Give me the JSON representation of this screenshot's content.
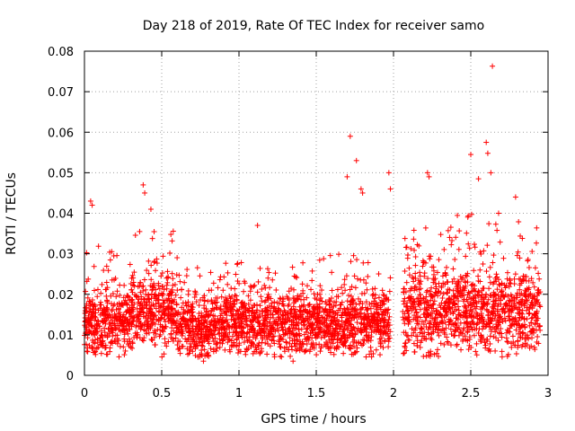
{
  "chart_data": {
    "type": "scatter",
    "title": "Day 218 of 2019, Rate Of TEC Index for receiver samo",
    "xlabel": "GPS time / hours",
    "ylabel": "ROTI / TECUs",
    "xlim": [
      0,
      3
    ],
    "ylim": [
      0,
      0.08
    ],
    "grid": true,
    "marker": "plus",
    "marker_color": "#ff0000",
    "x_ticks": [
      {
        "value": 0,
        "label": "0"
      },
      {
        "value": 0.5,
        "label": "0.5"
      },
      {
        "value": 1,
        "label": "1"
      },
      {
        "value": 1.5,
        "label": "1.5"
      },
      {
        "value": 2,
        "label": "2"
      },
      {
        "value": 2.5,
        "label": "2.5"
      },
      {
        "value": 3,
        "label": "3"
      }
    ],
    "y_ticks": [
      {
        "value": 0,
        "label": "0"
      },
      {
        "value": 0.01,
        "label": "0.01"
      },
      {
        "value": 0.02,
        "label": "0.02"
      },
      {
        "value": 0.03,
        "label": "0.03"
      },
      {
        "value": 0.04,
        "label": "0.04"
      },
      {
        "value": 0.05,
        "label": "0.05"
      },
      {
        "value": 0.06,
        "label": "0.06"
      },
      {
        "value": 0.07,
        "label": "0.07"
      },
      {
        "value": 0.08,
        "label": "0.08"
      }
    ],
    "gaps": [
      [
        1.98,
        2.06
      ]
    ],
    "notable_points": [
      {
        "x": 0.04,
        "y": 0.043
      },
      {
        "x": 0.05,
        "y": 0.042
      },
      {
        "x": 0.38,
        "y": 0.047
      },
      {
        "x": 0.39,
        "y": 0.045
      },
      {
        "x": 0.43,
        "y": 0.041
      },
      {
        "x": 1.12,
        "y": 0.037
      },
      {
        "x": 1.72,
        "y": 0.059
      },
      {
        "x": 1.76,
        "y": 0.053
      },
      {
        "x": 1.7,
        "y": 0.049
      },
      {
        "x": 1.79,
        "y": 0.046
      },
      {
        "x": 1.8,
        "y": 0.045
      },
      {
        "x": 1.97,
        "y": 0.05
      },
      {
        "x": 1.98,
        "y": 0.046
      },
      {
        "x": 2.22,
        "y": 0.05
      },
      {
        "x": 2.23,
        "y": 0.049
      },
      {
        "x": 2.5,
        "y": 0.0545
      },
      {
        "x": 2.6,
        "y": 0.0575
      },
      {
        "x": 2.61,
        "y": 0.0548
      },
      {
        "x": 2.64,
        "y": 0.0763
      },
      {
        "x": 2.55,
        "y": 0.0485
      },
      {
        "x": 2.63,
        "y": 0.05
      },
      {
        "x": 2.68,
        "y": 0.04
      },
      {
        "x": 2.79,
        "y": 0.044
      },
      {
        "x": 0.77,
        "y": 0.0035
      },
      {
        "x": 1.35,
        "y": 0.0035
      }
    ],
    "series": [
      {
        "name": "ROTI",
        "segments": [
          {
            "x_start": 0.0,
            "x_end": 0.3,
            "base": 0.013,
            "spread": 0.007,
            "spike_max": 0.032
          },
          {
            "x_start": 0.3,
            "x_end": 0.6,
            "base": 0.016,
            "spread": 0.008,
            "spike_max": 0.036
          },
          {
            "x_start": 0.6,
            "x_end": 0.9,
            "base": 0.012,
            "spread": 0.006,
            "spike_max": 0.027
          },
          {
            "x_start": 0.9,
            "x_end": 1.5,
            "base": 0.013,
            "spread": 0.007,
            "spike_max": 0.028
          },
          {
            "x_start": 1.5,
            "x_end": 1.98,
            "base": 0.013,
            "spread": 0.007,
            "spike_max": 0.03
          },
          {
            "x_start": 2.06,
            "x_end": 2.4,
            "base": 0.016,
            "spread": 0.009,
            "spike_max": 0.037
          },
          {
            "x_start": 2.4,
            "x_end": 2.95,
            "base": 0.016,
            "spread": 0.009,
            "spike_max": 0.04
          }
        ],
        "samples_per_segment_per_hour": 1200
      }
    ]
  }
}
